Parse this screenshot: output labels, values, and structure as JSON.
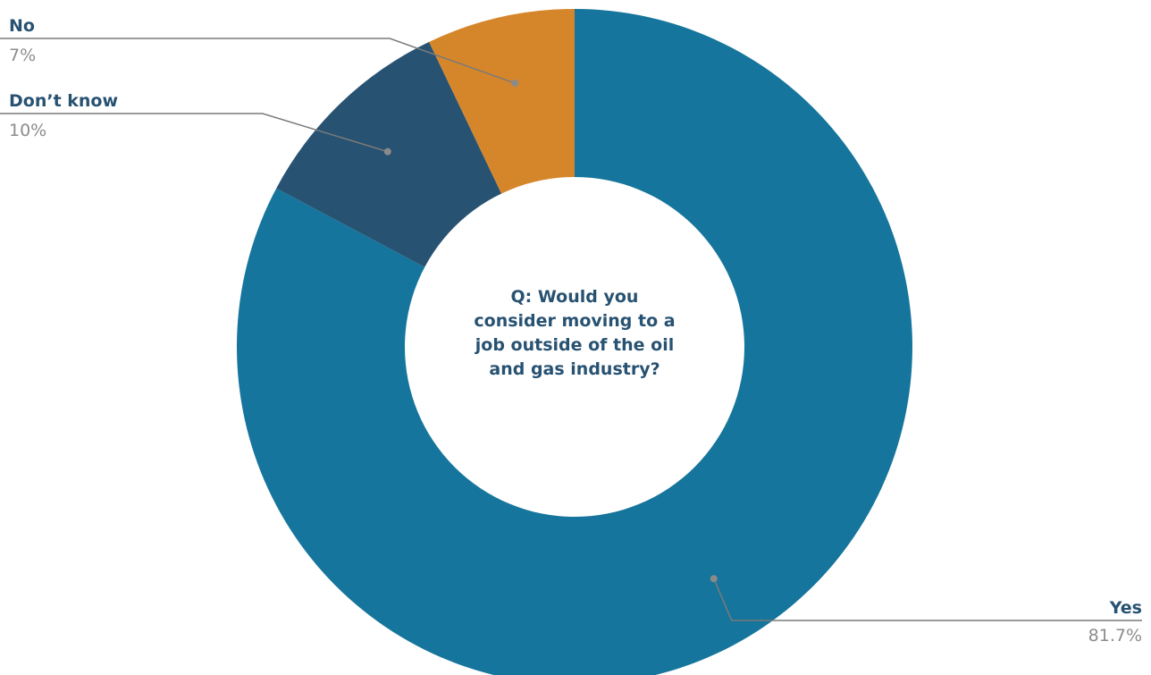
{
  "chart_data": {
    "type": "pie",
    "donut": true,
    "center_text": [
      "Q: Would you",
      "consider moving to a",
      "job outside of the oil",
      "and gas industry?"
    ],
    "slices": [
      {
        "label": "Yes",
        "value": 81.7,
        "display": "81.7%",
        "color": "#16759c"
      },
      {
        "label": "Don’t know",
        "value": 10,
        "display": "10%",
        "color": "#285272"
      },
      {
        "label": "No",
        "value": 7,
        "display": "7%",
        "color": "#d6862a"
      }
    ],
    "colors": {
      "label_name": "#285272",
      "label_value": "#8c8c8c",
      "leader": "#7a7a7a"
    }
  }
}
